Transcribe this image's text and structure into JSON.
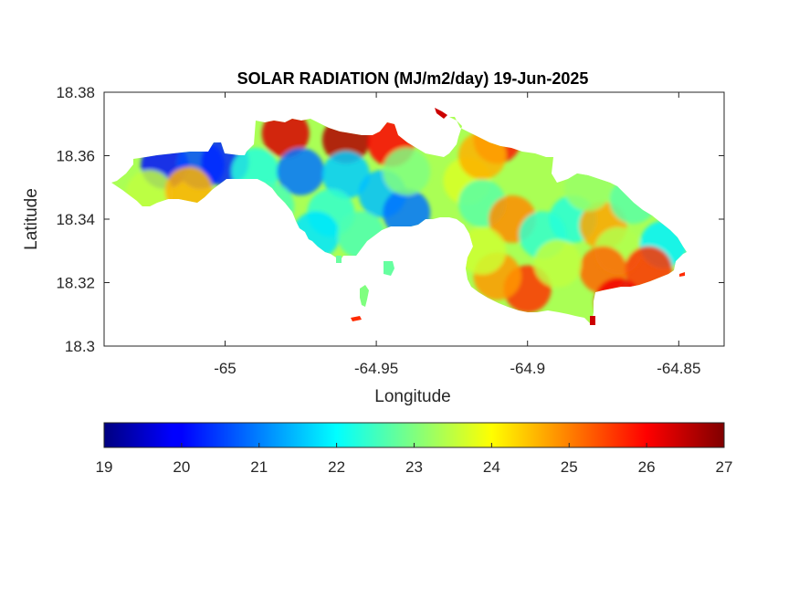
{
  "chart_data": {
    "type": "heatmap",
    "title": "SOLAR RADIATION (MJ/m2/day) 19-Jun-2025",
    "xlabel": "Longitude",
    "ylabel": "Latitude",
    "xlim": [
      -65.04,
      -64.835
    ],
    "ylim": [
      18.3,
      18.38
    ],
    "xticks": [
      -65,
      -64.95,
      -64.9,
      -64.85
    ],
    "xtick_labels": [
      "-65",
      "-64.95",
      "-64.9",
      "-64.85"
    ],
    "yticks": [
      18.3,
      18.32,
      18.34,
      18.36,
      18.38
    ],
    "ytick_labels": [
      "18.3",
      "18.32",
      "18.34",
      "18.36",
      "18.38"
    ],
    "grid": false,
    "colormap": "jet",
    "colorbar": {
      "orientation": "horizontal",
      "placement": "below",
      "range": [
        19,
        27
      ],
      "ticks": [
        19,
        20,
        21,
        22,
        23,
        24,
        25,
        26,
        27
      ],
      "tick_labels": [
        "19",
        "20",
        "21",
        "22",
        "23",
        "24",
        "25",
        "26",
        "27"
      ]
    },
    "samples": [
      {
        "lon": -65.02,
        "lat": 18.357,
        "value": 20.1
      },
      {
        "lon": -65.008,
        "lat": 18.357,
        "value": 20.6
      },
      {
        "lon": -65.0,
        "lat": 18.358,
        "value": 20.3
      },
      {
        "lon": -65.025,
        "lat": 18.348,
        "value": 23.5
      },
      {
        "lon": -65.012,
        "lat": 18.349,
        "value": 24.6
      },
      {
        "lon": -64.99,
        "lat": 18.355,
        "value": 22.3
      },
      {
        "lon": -64.98,
        "lat": 18.367,
        "value": 26.3
      },
      {
        "lon": -64.96,
        "lat": 18.365,
        "value": 26.6
      },
      {
        "lon": -64.945,
        "lat": 18.364,
        "value": 26.0
      },
      {
        "lon": -64.975,
        "lat": 18.355,
        "value": 20.9
      },
      {
        "lon": -64.96,
        "lat": 18.354,
        "value": 21.6
      },
      {
        "lon": -64.948,
        "lat": 18.348,
        "value": 21.5
      },
      {
        "lon": -64.94,
        "lat": 18.342,
        "value": 20.9
      },
      {
        "lon": -64.965,
        "lat": 18.342,
        "value": 22.4
      },
      {
        "lon": -64.97,
        "lat": 18.335,
        "value": 21.8
      },
      {
        "lon": -64.955,
        "lat": 18.335,
        "value": 22.6
      },
      {
        "lon": -64.94,
        "lat": 18.355,
        "value": 23.0
      },
      {
        "lon": -64.92,
        "lat": 18.352,
        "value": 23.7
      },
      {
        "lon": -64.91,
        "lat": 18.365,
        "value": 25.8
      },
      {
        "lon": -64.915,
        "lat": 18.36,
        "value": 24.6
      },
      {
        "lon": -64.915,
        "lat": 18.345,
        "value": 22.7
      },
      {
        "lon": -64.905,
        "lat": 18.34,
        "value": 24.9
      },
      {
        "lon": -64.895,
        "lat": 18.335,
        "value": 22.4
      },
      {
        "lon": -64.885,
        "lat": 18.34,
        "value": 22.3
      },
      {
        "lon": -64.875,
        "lat": 18.338,
        "value": 24.7
      },
      {
        "lon": -64.88,
        "lat": 18.35,
        "value": 23.2
      },
      {
        "lon": -64.865,
        "lat": 18.346,
        "value": 22.7
      },
      {
        "lon": -64.87,
        "lat": 18.33,
        "value": 23.4
      },
      {
        "lon": -64.855,
        "lat": 18.332,
        "value": 21.9
      },
      {
        "lon": -64.86,
        "lat": 18.324,
        "value": 25.6
      },
      {
        "lon": -64.875,
        "lat": 18.324,
        "value": 25.2
      },
      {
        "lon": -64.9,
        "lat": 18.318,
        "value": 25.6
      },
      {
        "lon": -64.91,
        "lat": 18.322,
        "value": 24.8
      },
      {
        "lon": -64.89,
        "lat": 18.326,
        "value": 23.5
      },
      {
        "lon": -64.915,
        "lat": 18.33,
        "value": 23.6
      },
      {
        "lon": -64.87,
        "lat": 18.314,
        "value": 26.1
      },
      {
        "lon": -64.975,
        "lat": 18.322,
        "value": 22.8
      },
      {
        "lon": -64.965,
        "lat": 18.315,
        "value": 25.5
      },
      {
        "lon": -64.985,
        "lat": 18.344,
        "value": 22.6
      }
    ]
  }
}
